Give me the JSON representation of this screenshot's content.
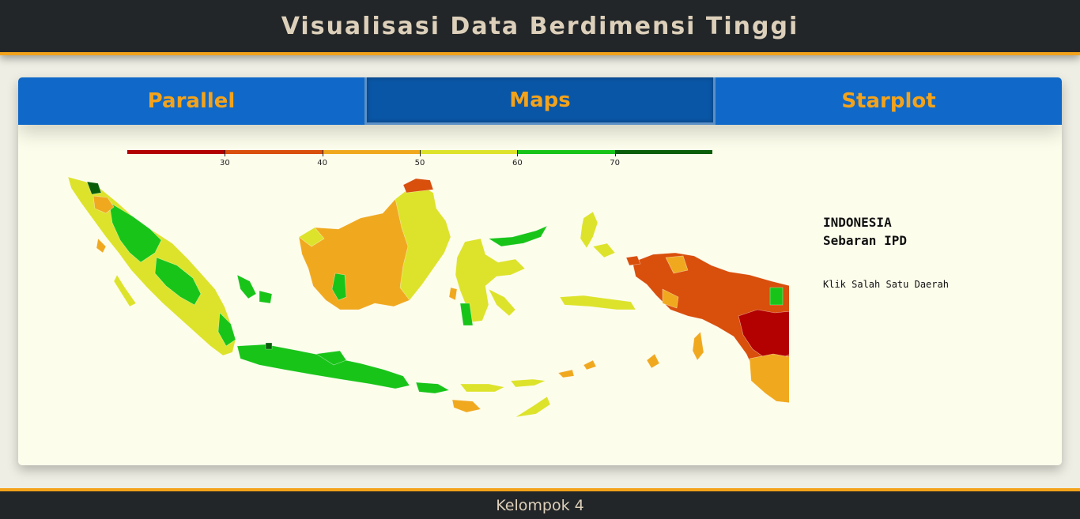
{
  "header": {
    "title": "Visualisasi Data Berdimensi Tinggi"
  },
  "tabs": [
    {
      "label": "Parallel",
      "active": false
    },
    {
      "label": "Maps",
      "active": true
    },
    {
      "label": "Starplot",
      "active": false
    }
  ],
  "legend": {
    "min": 20,
    "max": 80,
    "ticks": [
      "30",
      "40",
      "50",
      "60",
      "70"
    ],
    "colors": [
      "#b30000",
      "#d94f0c",
      "#f0a91f",
      "#dde32a",
      "#19c419",
      "#0a5e0a"
    ]
  },
  "info": {
    "country": "INDONESIA",
    "subtitle": "Sebaran IPD",
    "hint": "Klik Salah Satu Daerah"
  },
  "colors": {
    "accent": "#f3a31b",
    "tab_bg": "#1069c8",
    "tab_active_bg": "#0a56a6",
    "header_bg": "#232628",
    "panel_bg": "#fdfdec"
  },
  "footer": {
    "text": "Kelompok 4"
  }
}
